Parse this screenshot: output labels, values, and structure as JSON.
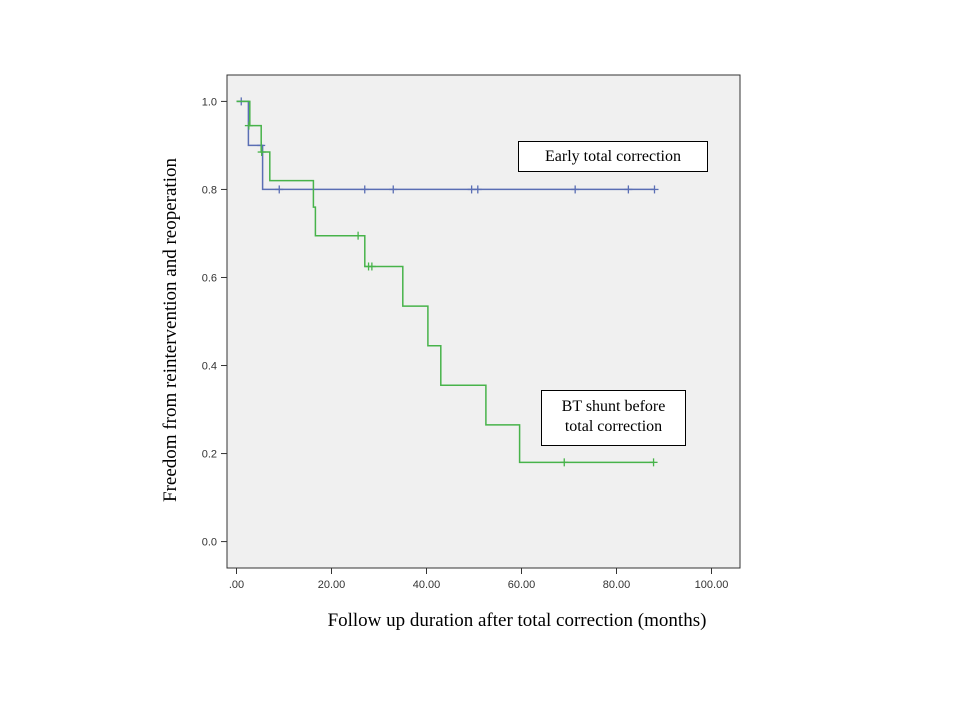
{
  "chart_data": {
    "type": "line",
    "title": "",
    "xlabel": "Follow up duration after total correction (months)",
    "ylabel": "Freedom from reintervention  and reoperation",
    "xlim": [
      -2,
      106
    ],
    "ylim": [
      -0.06,
      1.06
    ],
    "x_ticks": [
      0,
      20,
      40,
      60,
      80,
      100
    ],
    "x_tick_labels": [
      ".00",
      "20.00",
      "40.00",
      "60.00",
      "80.00",
      "100.00"
    ],
    "y_ticks": [
      0.0,
      0.2,
      0.4,
      0.6,
      0.8,
      1.0
    ],
    "y_tick_labels": [
      "0.0",
      "0.2",
      "0.4",
      "0.6",
      "0.8",
      "1.0"
    ],
    "background": "#f0f0f0",
    "grid": false,
    "legend": "annotation-boxes",
    "series": [
      {
        "name": "Early total correction",
        "color": "#5a6eb4",
        "steps": [
          [
            0,
            1.0
          ],
          [
            2.5,
            1.0
          ],
          [
            2.5,
            0.9
          ],
          [
            5.5,
            0.9
          ],
          [
            5.5,
            0.8
          ],
          [
            88,
            0.8
          ]
        ],
        "censored": [
          [
            1.0,
            1.0
          ],
          [
            5.2,
            0.9
          ],
          [
            9.0,
            0.8
          ],
          [
            27.0,
            0.8
          ],
          [
            33.0,
            0.8
          ],
          [
            49.5,
            0.8
          ],
          [
            50.8,
            0.8
          ],
          [
            71.3,
            0.8
          ],
          [
            82.5,
            0.8
          ],
          [
            88.0,
            0.8
          ]
        ]
      },
      {
        "name": "BT shunt before total correction",
        "color": "#47b34a",
        "steps": [
          [
            0,
            1.0
          ],
          [
            2.8,
            1.0
          ],
          [
            2.8,
            0.945
          ],
          [
            5.2,
            0.945
          ],
          [
            5.2,
            0.885
          ],
          [
            7.0,
            0.885
          ],
          [
            7.0,
            0.82
          ],
          [
            16.2,
            0.82
          ],
          [
            16.2,
            0.76
          ],
          [
            16.6,
            0.76
          ],
          [
            16.6,
            0.695
          ],
          [
            27.0,
            0.695
          ],
          [
            27.0,
            0.625
          ],
          [
            35.0,
            0.625
          ],
          [
            35.0,
            0.535
          ],
          [
            40.3,
            0.535
          ],
          [
            40.3,
            0.445
          ],
          [
            43.0,
            0.445
          ],
          [
            43.0,
            0.355
          ],
          [
            52.5,
            0.355
          ],
          [
            52.5,
            0.265
          ],
          [
            59.6,
            0.265
          ],
          [
            59.6,
            0.18
          ],
          [
            88,
            0.18
          ]
        ],
        "censored": [
          [
            2.6,
            0.945
          ],
          [
            5.3,
            0.885
          ],
          [
            25.6,
            0.695
          ],
          [
            27.8,
            0.625
          ],
          [
            28.5,
            0.625
          ],
          [
            69.0,
            0.18
          ],
          [
            87.8,
            0.18
          ]
        ]
      }
    ],
    "annotations": {
      "early_label": "Early  total correction",
      "bt_label_line1": "BT shunt before",
      "bt_label_line2": "total correction"
    }
  }
}
